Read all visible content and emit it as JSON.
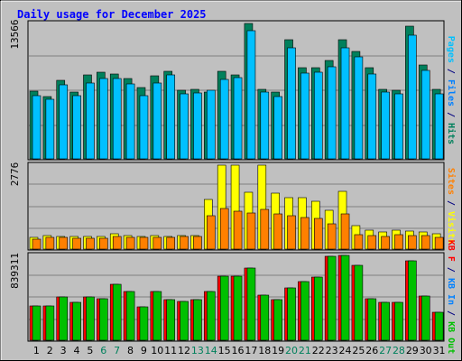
{
  "chart_data": {
    "type": "bar",
    "title": "Daily usage for December 2025",
    "days": [
      "1",
      "2",
      "3",
      "4",
      "5",
      "6",
      "7",
      "8",
      "9",
      "10",
      "11",
      "12",
      "13",
      "14",
      "15",
      "16",
      "17",
      "18",
      "19",
      "20",
      "21",
      "22",
      "23",
      "24",
      "25",
      "26",
      "27",
      "28",
      "29",
      "30",
      "31"
    ],
    "weekend_days": [
      "6",
      "7",
      "13",
      "14",
      "20",
      "21",
      "27",
      "28"
    ],
    "panels": [
      {
        "ymax_label": "13566",
        "ymax": 13566,
        "series": [
          {
            "name": "Hits",
            "color": "#00805c",
            "values": [
              6790,
              6250,
              7850,
              6690,
              8420,
              8680,
              8480,
              8030,
              7140,
              8300,
              8730,
              6870,
              6990,
              6690,
              8740,
              8420,
              13566,
              7000,
              6700,
              11900,
              9100,
              9160,
              9860,
              11930,
              10720,
              9170,
              6950,
              6890,
              13270,
              9420,
              6930
            ]
          },
          {
            "name": "Files",
            "color": "#00c0ff",
            "values": [
              6340,
              5970,
              7390,
              6330,
              7560,
              8060,
              8010,
              7550,
              6310,
              7610,
              8440,
              6550,
              6560,
              6850,
              8000,
              8110,
              12800,
              6680,
              6230,
              11130,
              8610,
              8650,
              9200,
              11130,
              10250,
              8470,
              6650,
              6480,
              12410,
              8890,
              6510
            ]
          },
          {
            "name": "Pages",
            "color": "#00ffff",
            "values": []
          }
        ]
      },
      {
        "ymax_label": "2776",
        "ymax": 2776,
        "series": [
          {
            "name": "Visits",
            "color": "#ffff00",
            "values": [
              400,
              450,
              430,
              410,
              430,
              430,
              500,
              460,
              430,
              440,
              430,
              450,
              460,
              1650,
              2776,
              2776,
              1890,
              2776,
              1850,
              1700,
              1690,
              1570,
              1290,
              1910,
              790,
              620,
              570,
              620,
              600,
              580,
              520
            ]
          },
          {
            "name": "Sites",
            "color": "#ff8000",
            "values": [
              340,
              400,
              380,
              370,
              370,
              350,
              430,
              400,
              390,
              400,
              400,
              420,
              420,
              1100,
              1350,
              1250,
              1200,
              1300,
              1150,
              1100,
              1050,
              1000,
              850,
              1150,
              470,
              450,
              420,
              470,
              460,
              460,
              400
            ]
          }
        ]
      },
      {
        "ymax_label": "839311",
        "ymax": 839311,
        "series": [
          {
            "name": "KB F",
            "color": "#ff0000",
            "values": [
              341000,
              338000,
              433000,
              371000,
              429000,
              415000,
              557000,
              484000,
              333000,
              485000,
              401000,
              387000,
              405000,
              480000,
              633000,
              635000,
              715000,
              449000,
              398000,
              521000,
              582000,
              623000,
              834000,
              839311,
              742000,
              411000,
              377000,
              371000,
              785000,
              439000,
              277000
            ]
          },
          {
            "name": "KB In",
            "color": "#0080ff",
            "values": []
          },
          {
            "name": "KB Out",
            "color": "#00c000",
            "values": [
              341000,
              338000,
              433000,
              371000,
              429000,
              415000,
              557000,
              484000,
              333000,
              485000,
              401000,
              387000,
              405000,
              480000,
              633000,
              635000,
              715000,
              449000,
              398000,
              521000,
              582000,
              623000,
              834000,
              839311,
              742000,
              411000,
              377000,
              371000,
              785000,
              439000,
              277000
            ]
          }
        ]
      }
    ],
    "right_labels": [
      {
        "parts": [
          {
            "text": "Pages",
            "color": "#00c0ff"
          },
          {
            "text": " / ",
            "color": "#000080"
          },
          {
            "text": "Files",
            "color": "#0080ff"
          },
          {
            "text": " / ",
            "color": "#000080"
          },
          {
            "text": "Hits",
            "color": "#00805c"
          }
        ]
      },
      {
        "parts": [
          {
            "text": "Sites",
            "color": "#ff8000"
          },
          {
            "text": " / ",
            "color": "#000080"
          },
          {
            "text": "Visits",
            "color": "#ffff00"
          }
        ]
      },
      {
        "parts": [
          {
            "text": "KB F",
            "color": "#ff0000"
          },
          {
            "text": " / ",
            "color": "#000080"
          },
          {
            "text": "KB In",
            "color": "#0080ff"
          },
          {
            "text": " / ",
            "color": "#000080"
          },
          {
            "text": "KB Out",
            "color": "#00c000"
          }
        ]
      }
    ],
    "grid": true
  },
  "colors": {
    "background": "#c0c0c0",
    "plot": "#c0c0c0",
    "title": "#0000ff",
    "weekday_label": "#000000",
    "weekend_label": "#00805c"
  }
}
